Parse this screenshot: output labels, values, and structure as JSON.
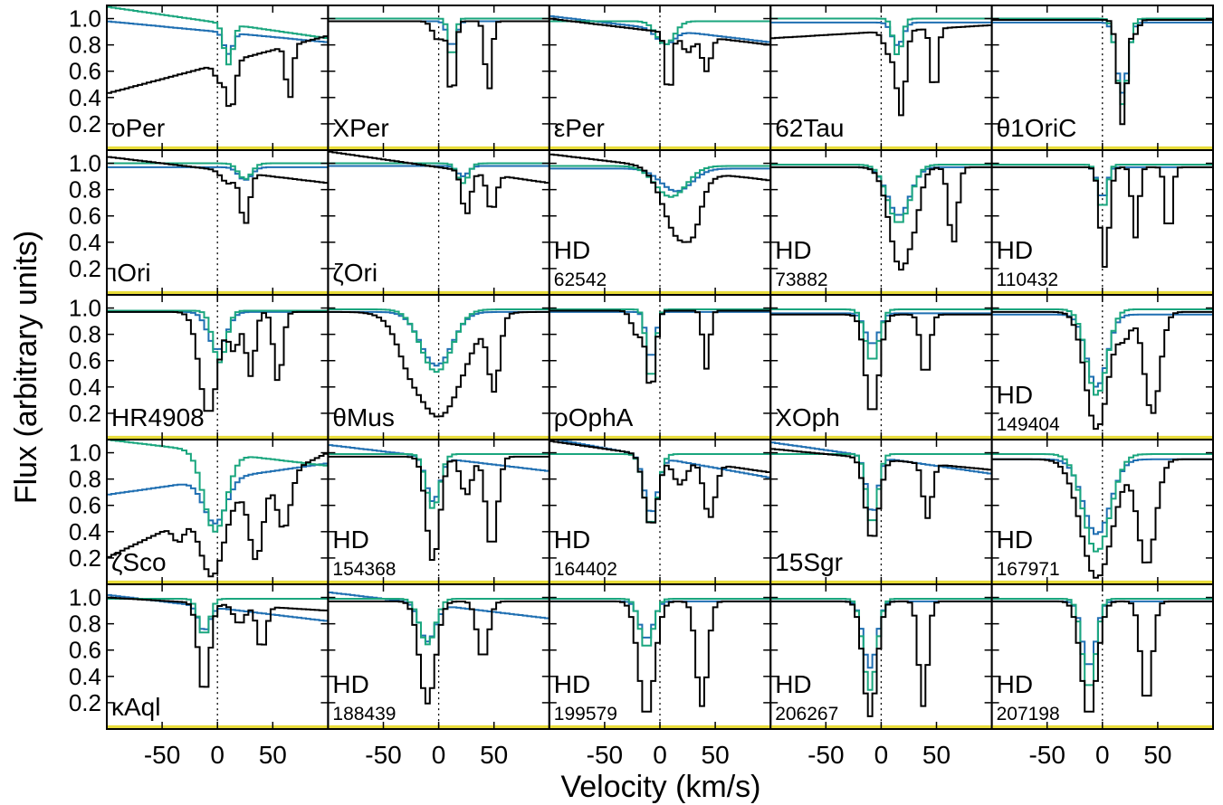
{
  "chart_data": {
    "type": "line",
    "xlabel": "Velocity (km/s)",
    "ylabel": "Flux (arbitrary units)",
    "xlim": [
      -100,
      100
    ],
    "ylim": [
      0,
      1.1
    ],
    "x_ticks": [
      -50,
      0,
      50
    ],
    "x_tick_labels": [
      "-50",
      "0",
      "50"
    ],
    "y_ticks": [
      0.2,
      0.4,
      0.6,
      0.8,
      1.0
    ],
    "y_tick_labels": [
      "0.2",
      "0.4",
      "0.6",
      "0.8",
      "1.0"
    ],
    "grid": false,
    "legend": "none",
    "reference_line_x": 0,
    "colors": {
      "black": "#000000",
      "green": "#1aa67e",
      "blue": "#1f6fb2",
      "baseline": "#e8dc3a"
    },
    "layout_grid": {
      "rows": 5,
      "cols": 5
    },
    "panels": [
      {
        "star": "oPer",
        "label": [
          "oPer"
        ],
        "continuum": 0.65,
        "cont_slope": 0.22,
        "green_cont": 0.97,
        "green_slope": -0.12,
        "blue_cont": 0.9,
        "blue_slope": -0.08,
        "lines": [
          {
            "v": 12,
            "w": 4,
            "d": 0.55
          },
          {
            "v": 65,
            "w": 3,
            "d": 0.52
          },
          {
            "v": 2,
            "w": 4,
            "d": 0.2
          }
        ],
        "green_lines": [
          {
            "v": 10,
            "w": 4,
            "d": 0.32
          }
        ],
        "blue_lines": [
          {
            "v": 10,
            "w": 4,
            "d": 0.18
          }
        ]
      },
      {
        "star": "XPer",
        "label": [
          "XPer"
        ],
        "continuum": 0.98,
        "cont_slope": 0.0,
        "green_cont": 1.0,
        "green_slope": 0.0,
        "blue_cont": 0.98,
        "blue_slope": 0.0,
        "lines": [
          {
            "v": 12,
            "w": 3,
            "d": 0.62
          },
          {
            "v": 45,
            "w": 3,
            "d": 0.55
          },
          {
            "v": 0,
            "w": 5,
            "d": 0.15
          }
        ],
        "green_lines": [
          {
            "v": 12,
            "w": 3,
            "d": 0.32
          }
        ],
        "blue_lines": [
          {
            "v": 12,
            "w": 4,
            "d": 0.2
          }
        ]
      },
      {
        "star": "εPer",
        "label": [
          "εPer"
        ],
        "continuum": 0.9,
        "cont_slope": -0.1,
        "green_cont": 0.98,
        "green_slope": 0.0,
        "blue_cont": 0.92,
        "blue_slope": -0.1,
        "lines": [
          {
            "v": 8,
            "w": 3,
            "d": 0.55
          },
          {
            "v": 42,
            "w": 4,
            "d": 0.3
          },
          {
            "v": 25,
            "w": 5,
            "d": 0.15
          }
        ],
        "green_lines": [
          {
            "v": 5,
            "w": 8,
            "d": 0.18
          }
        ],
        "blue_lines": [
          {
            "v": 5,
            "w": 8,
            "d": 0.12
          }
        ]
      },
      {
        "star": "62Tau",
        "label": [
          "62Tau"
        ],
        "continuum": 0.9,
        "cont_slope": 0.05,
        "green_cont": 1.0,
        "green_slope": 0.0,
        "blue_cont": 0.97,
        "blue_slope": 0.0,
        "lines": [
          {
            "v": 18,
            "w": 4,
            "d": 0.7
          },
          {
            "v": 48,
            "w": 3,
            "d": 0.55
          },
          {
            "v": 8,
            "w": 5,
            "d": 0.2
          }
        ],
        "green_lines": [
          {
            "v": 15,
            "w": 4,
            "d": 0.28
          }
        ],
        "blue_lines": [
          {
            "v": 15,
            "w": 5,
            "d": 0.18
          }
        ]
      },
      {
        "star": "θ1OriC",
        "label": [
          "θ1OriC"
        ],
        "continuum": 0.99,
        "cont_slope": 0.0,
        "green_cont": 1.0,
        "green_slope": 0.0,
        "blue_cont": 0.97,
        "blue_slope": 0.0,
        "lines": [
          {
            "v": 18,
            "w": 4,
            "d": 0.8
          },
          {
            "v": 30,
            "w": 3,
            "d": 0.1
          }
        ],
        "green_lines": [
          {
            "v": 18,
            "w": 5,
            "d": 0.65
          }
        ],
        "blue_lines": [
          {
            "v": 18,
            "w": 5,
            "d": 0.55
          }
        ]
      },
      {
        "star": "ιOri",
        "label": [
          "ιOri"
        ],
        "continuum": 0.95,
        "cont_slope": -0.1,
        "green_cont": 1.0,
        "green_slope": 0.0,
        "blue_cont": 0.97,
        "blue_slope": 0.0,
        "lines": [
          {
            "v": 25,
            "w": 4,
            "d": 0.42
          },
          {
            "v": 10,
            "w": 6,
            "d": 0.1
          }
        ],
        "green_lines": [
          {
            "v": 25,
            "w": 6,
            "d": 0.12
          }
        ],
        "blue_lines": [
          {
            "v": 25,
            "w": 6,
            "d": 0.1
          }
        ]
      },
      {
        "star": "ζOri",
        "label": [
          "ζOri"
        ],
        "continuum": 0.97,
        "cont_slope": -0.12,
        "green_cont": 1.0,
        "green_slope": 0.0,
        "blue_cont": 0.98,
        "blue_slope": 0.0,
        "lines": [
          {
            "v": 25,
            "w": 4,
            "d": 0.35
          },
          {
            "v": 48,
            "w": 4,
            "d": 0.3
          }
        ],
        "green_lines": [
          {
            "v": 22,
            "w": 5,
            "d": 0.15
          }
        ],
        "blue_lines": [
          {
            "v": 22,
            "w": 5,
            "d": 0.08
          }
        ]
      },
      {
        "star": "HD 62542",
        "label": [
          "HD",
          "62542"
        ],
        "continuum": 0.97,
        "cont_slope": -0.1,
        "green_cont": 0.98,
        "green_slope": 0.0,
        "blue_cont": 0.96,
        "blue_slope": 0.0,
        "lines": [
          {
            "v": 18,
            "w": 14,
            "d": 0.55
          },
          {
            "v": 30,
            "w": 6,
            "d": 0.25
          }
        ],
        "green_lines": [
          {
            "v": 10,
            "w": 14,
            "d": 0.24
          }
        ],
        "blue_lines": [
          {
            "v": 15,
            "w": 14,
            "d": 0.18
          }
        ]
      },
      {
        "star": "HD 73882",
        "label": [
          "HD",
          "73882"
        ],
        "continuum": 0.97,
        "cont_slope": 0.0,
        "green_cont": 0.99,
        "green_slope": 0.0,
        "blue_cont": 0.97,
        "blue_slope": 0.0,
        "lines": [
          {
            "v": 18,
            "w": 10,
            "d": 0.8
          },
          {
            "v": 65,
            "w": 4,
            "d": 0.6
          },
          {
            "v": 30,
            "w": 5,
            "d": 0.2
          }
        ],
        "green_lines": [
          {
            "v": 16,
            "w": 10,
            "d": 0.45
          }
        ],
        "blue_lines": [
          {
            "v": 16,
            "w": 10,
            "d": 0.38
          }
        ]
      },
      {
        "star": "HD 110432",
        "label": [
          "HD",
          "110432"
        ],
        "continuum": 0.97,
        "cont_slope": 0.0,
        "green_cont": 0.99,
        "green_slope": 0.0,
        "blue_cont": 0.97,
        "blue_slope": 0.0,
        "lines": [
          {
            "v": 2,
            "w": 4,
            "d": 0.78
          },
          {
            "v": 30,
            "w": 3,
            "d": 0.55
          },
          {
            "v": 60,
            "w": 3,
            "d": 0.55
          }
        ],
        "green_lines": [
          {
            "v": 0,
            "w": 4,
            "d": 0.35
          }
        ],
        "blue_lines": [
          {
            "v": 0,
            "w": 4,
            "d": 0.25
          }
        ]
      },
      {
        "star": "HR4908",
        "label": [
          "HR4908"
        ],
        "continuum": 0.97,
        "cont_slope": 0.0,
        "green_cont": 0.98,
        "green_slope": 0.0,
        "blue_cont": 0.97,
        "blue_slope": 0.0,
        "lines": [
          {
            "v": -8,
            "w": 8,
            "d": 0.8
          },
          {
            "v": 30,
            "w": 4,
            "d": 0.5
          },
          {
            "v": 55,
            "w": 4,
            "d": 0.55
          },
          {
            "v": 15,
            "w": 5,
            "d": 0.3
          }
        ],
        "green_lines": [
          {
            "v": 2,
            "w": 6,
            "d": 0.4
          }
        ],
        "blue_lines": [
          {
            "v": 0,
            "w": 8,
            "d": 0.3
          }
        ]
      },
      {
        "star": "θMus",
        "label": [
          "θMus"
        ],
        "continuum": 0.97,
        "cont_slope": 0.0,
        "green_cont": 0.99,
        "green_slope": 0.0,
        "blue_cont": 0.97,
        "blue_slope": 0.0,
        "lines": [
          {
            "v": 0,
            "w": 22,
            "d": 0.82
          },
          {
            "v": 50,
            "w": 5,
            "d": 0.6
          },
          {
            "v": -25,
            "w": 10,
            "d": 0.2
          }
        ],
        "green_lines": [
          {
            "v": -2,
            "w": 14,
            "d": 0.48
          }
        ],
        "blue_lines": [
          {
            "v": -2,
            "w": 14,
            "d": 0.42
          }
        ]
      },
      {
        "star": "ρOphA",
        "label": [
          "ρOphA"
        ],
        "continuum": 0.98,
        "cont_slope": 0.0,
        "green_cont": 0.99,
        "green_slope": 0.0,
        "blue_cont": 0.97,
        "blue_slope": 0.0,
        "lines": [
          {
            "v": -8,
            "w": 4,
            "d": 0.62
          },
          {
            "v": 42,
            "w": 3,
            "d": 0.45
          },
          {
            "v": -20,
            "w": 5,
            "d": 0.2
          }
        ],
        "green_lines": [
          {
            "v": -8,
            "w": 4,
            "d": 0.56
          }
        ],
        "blue_lines": [
          {
            "v": -8,
            "w": 4,
            "d": 0.38
          }
        ]
      },
      {
        "star": "XOph",
        "label": [
          "XOph"
        ],
        "continuum": 0.95,
        "cont_slope": 0.0,
        "green_cont": 0.99,
        "green_slope": 0.0,
        "blue_cont": 0.96,
        "blue_slope": 0.0,
        "lines": [
          {
            "v": -8,
            "w": 6,
            "d": 0.8
          },
          {
            "v": 40,
            "w": 4,
            "d": 0.5
          }
        ],
        "green_lines": [
          {
            "v": -8,
            "w": 6,
            "d": 0.4
          }
        ],
        "blue_lines": [
          {
            "v": -8,
            "w": 6,
            "d": 0.25
          }
        ]
      },
      {
        "star": "HD 149404",
        "label": [
          "HD",
          "149404"
        ],
        "continuum": 0.97,
        "cont_slope": 0.0,
        "green_cont": 0.99,
        "green_slope": 0.0,
        "blue_cont": 0.95,
        "blue_slope": 0.0,
        "lines": [
          {
            "v": -5,
            "w": 10,
            "d": 0.92
          },
          {
            "v": 45,
            "w": 7,
            "d": 0.8
          },
          {
            "v": 20,
            "w": 6,
            "d": 0.2
          }
        ],
        "green_lines": [
          {
            "v": -5,
            "w": 9,
            "d": 0.66
          }
        ],
        "blue_lines": [
          {
            "v": -5,
            "w": 9,
            "d": 0.58
          }
        ]
      },
      {
        "star": "ζSco",
        "label": [
          "ζSco"
        ],
        "continuum": 0.6,
        "cont_slope": 0.4,
        "green_cont": 1.0,
        "green_slope": -0.1,
        "blue_cont": 0.8,
        "blue_slope": 0.12,
        "lines": [
          {
            "v": -5,
            "w": 10,
            "d": 0.9
          },
          {
            "v": 35,
            "w": 6,
            "d": 0.75
          },
          {
            "v": 60,
            "w": 6,
            "d": 0.5
          },
          {
            "v": -35,
            "w": 5,
            "d": 0.3
          }
        ],
        "green_lines": [
          {
            "v": -2,
            "w": 10,
            "d": 0.6
          }
        ],
        "blue_lines": [
          {
            "v": -2,
            "w": 10,
            "d": 0.42
          }
        ]
      },
      {
        "star": "HD 154368",
        "label": [
          "HD",
          "154368"
        ],
        "continuum": 0.97,
        "cont_slope": 0.0,
        "green_cont": 0.99,
        "green_slope": 0.0,
        "blue_cont": 0.96,
        "blue_slope": -0.1,
        "lines": [
          {
            "v": -5,
            "w": 6,
            "d": 0.82
          },
          {
            "v": 48,
            "w": 5,
            "d": 0.72
          },
          {
            "v": 25,
            "w": 5,
            "d": 0.3
          }
        ],
        "green_lines": [
          {
            "v": -5,
            "w": 6,
            "d": 0.42
          }
        ],
        "blue_lines": [
          {
            "v": -5,
            "w": 6,
            "d": 0.35
          }
        ]
      },
      {
        "star": "HD 164402",
        "label": [
          "HD",
          "164402"
        ],
        "continuum": 0.97,
        "cont_slope": -0.12,
        "green_cont": 0.99,
        "green_slope": 0.0,
        "blue_cont": 0.96,
        "blue_slope": -0.15,
        "lines": [
          {
            "v": -8,
            "w": 6,
            "d": 0.55
          },
          {
            "v": 45,
            "w": 5,
            "d": 0.45
          },
          {
            "v": 18,
            "w": 6,
            "d": 0.2
          }
        ],
        "green_lines": [
          {
            "v": -8,
            "w": 6,
            "d": 0.55
          }
        ],
        "blue_lines": [
          {
            "v": -8,
            "w": 6,
            "d": 0.45
          }
        ]
      },
      {
        "star": "15Sgr",
        "label": [
          "15Sgr"
        ],
        "continuum": 0.95,
        "cont_slope": -0.08,
        "green_cont": 0.99,
        "green_slope": 0.0,
        "blue_cont": 0.96,
        "blue_slope": -0.12,
        "lines": [
          {
            "v": -8,
            "w": 6,
            "d": 0.65
          },
          {
            "v": 42,
            "w": 4,
            "d": 0.45
          }
        ],
        "green_lines": [
          {
            "v": -8,
            "w": 5,
            "d": 0.55
          }
        ],
        "blue_lines": [
          {
            "v": -8,
            "w": 5,
            "d": 0.45
          }
        ]
      },
      {
        "star": "HD 167971",
        "label": [
          "HD",
          "167971"
        ],
        "continuum": 0.95,
        "cont_slope": 0.0,
        "green_cont": 0.99,
        "green_slope": 0.0,
        "blue_cont": 0.95,
        "blue_slope": 0.0,
        "lines": [
          {
            "v": -5,
            "w": 14,
            "d": 0.95
          },
          {
            "v": 40,
            "w": 8,
            "d": 0.85
          }
        ],
        "green_lines": [
          {
            "v": -5,
            "w": 12,
            "d": 0.75
          }
        ],
        "blue_lines": [
          {
            "v": -5,
            "w": 12,
            "d": 0.6
          }
        ]
      },
      {
        "star": "κAql",
        "label": [
          "κAql"
        ],
        "continuum": 0.95,
        "cont_slope": -0.05,
        "green_cont": 0.99,
        "green_slope": 0.0,
        "blue_cont": 0.92,
        "blue_slope": -0.1,
        "lines": [
          {
            "v": -12,
            "w": 5,
            "d": 0.72
          },
          {
            "v": 40,
            "w": 4,
            "d": 0.35
          },
          {
            "v": 20,
            "w": 5,
            "d": 0.15
          }
        ],
        "green_lines": [
          {
            "v": -12,
            "w": 5,
            "d": 0.28
          }
        ],
        "blue_lines": [
          {
            "v": -12,
            "w": 5,
            "d": 0.2
          }
        ]
      },
      {
        "star": "HD 188439",
        "label": [
          "HD",
          "188439"
        ],
        "continuum": 0.97,
        "cont_slope": 0.0,
        "green_cont": 0.99,
        "green_slope": 0.0,
        "blue_cont": 0.94,
        "blue_slope": -0.1,
        "lines": [
          {
            "v": -10,
            "w": 7,
            "d": 0.8
          },
          {
            "v": 40,
            "w": 5,
            "d": 0.45
          }
        ],
        "green_lines": [
          {
            "v": -10,
            "w": 7,
            "d": 0.35
          }
        ],
        "blue_lines": [
          {
            "v": -10,
            "w": 7,
            "d": 0.3
          }
        ]
      },
      {
        "star": "HD 199579",
        "label": [
          "HD",
          "199579"
        ],
        "continuum": 0.97,
        "cont_slope": 0.0,
        "green_cont": 0.99,
        "green_slope": 0.0,
        "blue_cont": 0.97,
        "blue_slope": 0.0,
        "lines": [
          {
            "v": -12,
            "w": 7,
            "d": 0.9
          },
          {
            "v": 38,
            "w": 5,
            "d": 0.82
          }
        ],
        "green_lines": [
          {
            "v": -12,
            "w": 6,
            "d": 0.38
          }
        ],
        "blue_lines": [
          {
            "v": -12,
            "w": 6,
            "d": 0.3
          }
        ]
      },
      {
        "star": "HD 206267",
        "label": [
          "HD",
          "206267"
        ],
        "continuum": 0.97,
        "cont_slope": 0.0,
        "green_cont": 0.99,
        "green_slope": 0.0,
        "blue_cont": 0.97,
        "blue_slope": 0.0,
        "lines": [
          {
            "v": -10,
            "w": 6,
            "d": 0.9
          },
          {
            "v": 38,
            "w": 4,
            "d": 0.82
          }
        ],
        "green_lines": [
          {
            "v": -10,
            "w": 6,
            "d": 0.7
          }
        ],
        "blue_lines": [
          {
            "v": -10,
            "w": 6,
            "d": 0.52
          }
        ]
      },
      {
        "star": "HD 207198",
        "label": [
          "HD",
          "207198"
        ],
        "continuum": 0.97,
        "cont_slope": 0.0,
        "green_cont": 0.99,
        "green_slope": 0.0,
        "blue_cont": 0.97,
        "blue_slope": 0.0,
        "lines": [
          {
            "v": -12,
            "w": 7,
            "d": 0.9
          },
          {
            "v": 40,
            "w": 5,
            "d": 0.8
          }
        ],
        "green_lines": [
          {
            "v": -12,
            "w": 6,
            "d": 0.7
          }
        ],
        "blue_lines": [
          {
            "v": -12,
            "w": 6,
            "d": 0.52
          }
        ]
      }
    ]
  }
}
